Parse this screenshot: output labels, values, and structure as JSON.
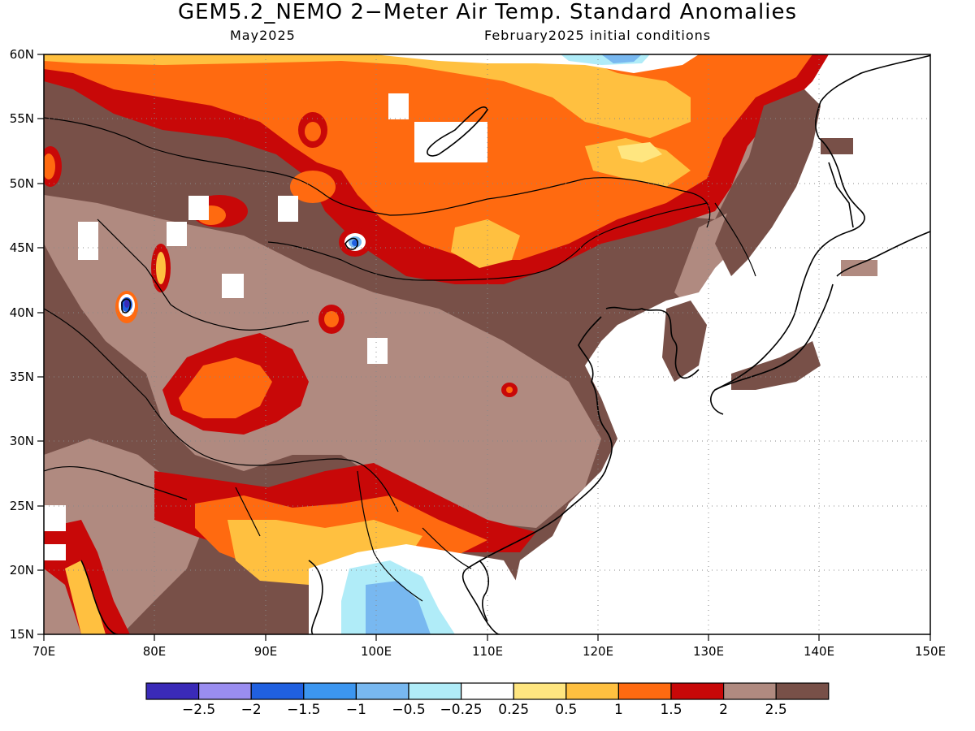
{
  "header": {
    "title": "GEM5.2_NEMO 2−Meter Air Temp. Standard Anomalies",
    "valid": "May2025",
    "initial": "February2025 initial conditions"
  },
  "axes": {
    "lon_labels": [
      "70E",
      "80E",
      "90E",
      "100E",
      "110E",
      "120E",
      "130E",
      "140E",
      "150E"
    ],
    "lat_labels": [
      "60N",
      "55N",
      "50N",
      "45N",
      "40N",
      "35N",
      "30N",
      "25N",
      "20N",
      "15N"
    ]
  },
  "colorbar": {
    "colors": [
      "#3a2ab8",
      "#9a8df0",
      "#2060e0",
      "#3c96f0",
      "#78b8f0",
      "#b0ecf8",
      "#ffffff",
      "#ffe680",
      "#ffc040",
      "#ff6a10",
      "#c80808",
      "#b08a80",
      "#785048"
    ],
    "labels": [
      "−2.5",
      "−2",
      "−1.5",
      "−1",
      "−0.5",
      "−0.25",
      "0.25",
      "0.5",
      "1",
      "1.5",
      "2",
      "2.5"
    ]
  },
  "map": {
    "colors": {
      "cold_deep": "#2060e0",
      "cold_light": "#78b8f0",
      "cold_pale": "#b0ecf8",
      "neutral": "#ffffff",
      "warm_yellow": "#ffe680",
      "warm_orange_light": "#ffc040",
      "warm_orange": "#ff6a10",
      "warm_red": "#c80808",
      "warm_taupe": "#b08a80",
      "warm_brown": "#785048",
      "ocean": "#ffffff"
    }
  }
}
